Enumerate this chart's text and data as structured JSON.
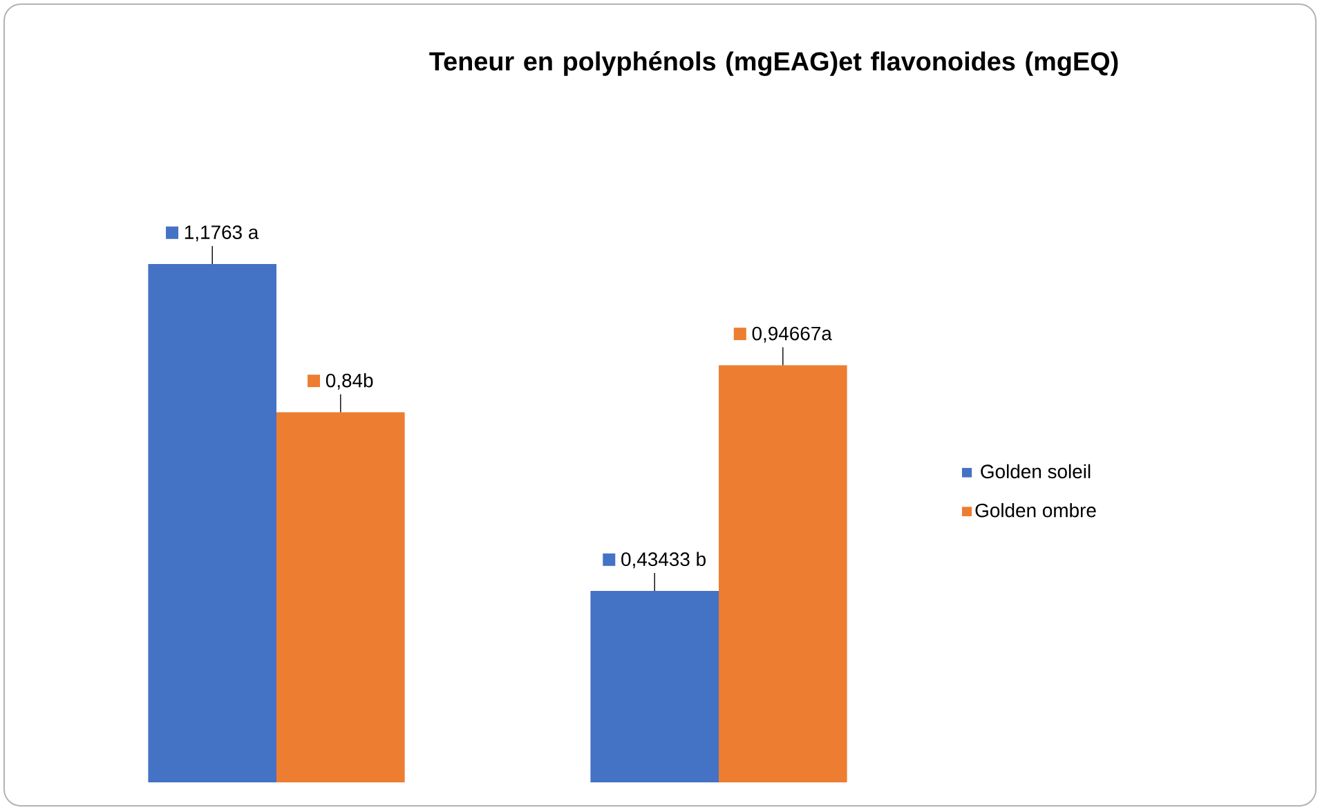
{
  "chart_data": {
    "type": "bar",
    "title": "Teneur en polyphénols (mgEAG)et flavonoides (mgEQ)",
    "categories": [
      null,
      null
    ],
    "legend": "right",
    "series": [
      {
        "name": "Golden soleil",
        "color": "#4472c4",
        "values": [
          1.1763,
          0.43433
        ],
        "value_labels": [
          "1,1763 a",
          "0,43433 b"
        ]
      },
      {
        "name": "Golden ombre",
        "color": "#ed7d31",
        "values": [
          0.84,
          0.94667
        ],
        "value_labels": [
          "0,84b",
          "0,94667a"
        ]
      }
    ]
  }
}
